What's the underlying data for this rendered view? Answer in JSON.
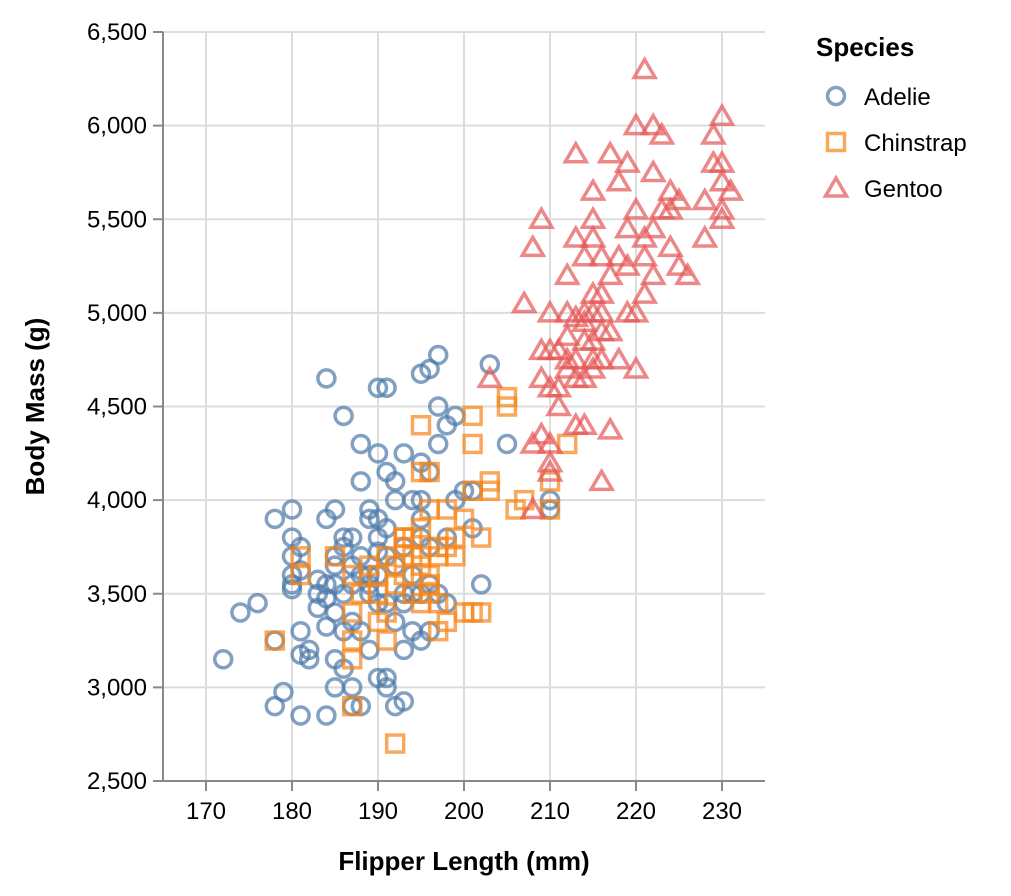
{
  "chart_data": {
    "type": "scatter",
    "xlabel": "Flipper Length (mm)",
    "ylabel": "Body Mass (g)",
    "xlim": [
      165,
      235
    ],
    "ylim": [
      2500,
      6500
    ],
    "x_ticks": [
      "170",
      "180",
      "190",
      "200",
      "210",
      "220",
      "230"
    ],
    "x_tick_values": [
      170,
      180,
      190,
      200,
      210,
      220,
      230
    ],
    "y_ticks": [
      "2,500",
      "3,000",
      "3,500",
      "4,000",
      "4,500",
      "5,000",
      "5,500",
      "6,000",
      "6,500"
    ],
    "y_tick_values": [
      2500,
      3000,
      3500,
      4000,
      4500,
      5000,
      5500,
      6000,
      6500
    ],
    "grid": true,
    "legend": {
      "title": "Species",
      "placement": "right"
    },
    "series": [
      {
        "name": "Adelie",
        "color": "#4c78a8",
        "shape": "circle",
        "points": [
          [
            172,
            3150
          ],
          [
            174,
            3400
          ],
          [
            176,
            3450
          ],
          [
            178,
            3250
          ],
          [
            178,
            3900
          ],
          [
            178,
            2900
          ],
          [
            179,
            2975
          ],
          [
            180,
            3550
          ],
          [
            180,
            3600
          ],
          [
            180,
            3700
          ],
          [
            180,
            3800
          ],
          [
            180,
            3950
          ],
          [
            181,
            3625
          ],
          [
            181,
            3750
          ],
          [
            181,
            3300
          ],
          [
            181,
            3175
          ],
          [
            181,
            2850
          ],
          [
            182,
            3200
          ],
          [
            182,
            3150
          ],
          [
            183,
            3425
          ],
          [
            183,
            3575
          ],
          [
            184,
            3900
          ],
          [
            184,
            3325
          ],
          [
            184,
            3550
          ],
          [
            184,
            3475
          ],
          [
            184,
            2850
          ],
          [
            184,
            4650
          ],
          [
            185,
            3400
          ],
          [
            185,
            3650
          ],
          [
            185,
            3950
          ],
          [
            185,
            3700
          ],
          [
            185,
            3000
          ],
          [
            185,
            3150
          ],
          [
            186,
            3100
          ],
          [
            186,
            3300
          ],
          [
            186,
            3500
          ],
          [
            186,
            3800
          ],
          [
            186,
            4450
          ],
          [
            187,
            3350
          ],
          [
            187,
            3650
          ],
          [
            187,
            3800
          ],
          [
            187,
            2900
          ],
          [
            187,
            3000
          ],
          [
            188,
            3600
          ],
          [
            188,
            3300
          ],
          [
            188,
            4300
          ],
          [
            188,
            2900
          ],
          [
            188,
            4100
          ],
          [
            189,
            3200
          ],
          [
            189,
            3500
          ],
          [
            189,
            3900
          ],
          [
            189,
            3950
          ],
          [
            189,
            3550
          ],
          [
            190,
            3050
          ],
          [
            190,
            3450
          ],
          [
            190,
            3600
          ],
          [
            190,
            3725
          ],
          [
            190,
            3800
          ],
          [
            190,
            3900
          ],
          [
            190,
            4250
          ],
          [
            190,
            4600
          ],
          [
            191,
            3000
          ],
          [
            191,
            3050
          ],
          [
            191,
            3700
          ],
          [
            191,
            4150
          ],
          [
            191,
            4600
          ],
          [
            191,
            3450
          ],
          [
            192,
            2900
          ],
          [
            192,
            3650
          ],
          [
            192,
            4000
          ],
          [
            192,
            4100
          ],
          [
            193,
            3450
          ],
          [
            193,
            3500
          ],
          [
            193,
            2925
          ],
          [
            193,
            4250
          ],
          [
            193,
            3200
          ],
          [
            194,
            3300
          ],
          [
            194,
            3600
          ],
          [
            194,
            4000
          ],
          [
            195,
            3250
          ],
          [
            195,
            3500
          ],
          [
            195,
            4200
          ],
          [
            195,
            4000
          ],
          [
            195,
            4675
          ],
          [
            195,
            3800
          ],
          [
            196,
            3550
          ],
          [
            196,
            4700
          ],
          [
            196,
            4150
          ],
          [
            196,
            3750
          ],
          [
            197,
            3500
          ],
          [
            197,
            4500
          ],
          [
            197,
            4775
          ],
          [
            197,
            4300
          ],
          [
            198,
            3800
          ],
          [
            198,
            4400
          ],
          [
            198,
            3450
          ],
          [
            199,
            4450
          ],
          [
            199,
            4000
          ],
          [
            200,
            4050
          ],
          [
            201,
            3850
          ],
          [
            201,
            4050
          ],
          [
            202,
            3550
          ],
          [
            203,
            4725
          ],
          [
            205,
            4300
          ],
          [
            210,
            3950
          ],
          [
            210,
            4000
          ],
          [
            195,
            3900
          ],
          [
            193,
            3750
          ],
          [
            191,
            3850
          ],
          [
            186,
            3750
          ],
          [
            189,
            3600
          ],
          [
            188,
            3700
          ],
          [
            192,
            3350
          ],
          [
            194,
            3500
          ],
          [
            196,
            3300
          ],
          [
            187,
            3550
          ],
          [
            185,
            3550
          ],
          [
            183,
            3500
          ],
          [
            180,
            3525
          ]
        ]
      },
      {
        "name": "Chinstrap",
        "color": "#f58518",
        "shape": "square",
        "points": [
          [
            178,
            3250
          ],
          [
            181,
            3700
          ],
          [
            181,
            3600
          ],
          [
            185,
            3700
          ],
          [
            187,
            3600
          ],
          [
            187,
            3400
          ],
          [
            187,
            3250
          ],
          [
            187,
            3150
          ],
          [
            187,
            2900
          ],
          [
            188,
            3500
          ],
          [
            189,
            3650
          ],
          [
            190,
            3350
          ],
          [
            190,
            3500
          ],
          [
            190,
            3600
          ],
          [
            191,
            3250
          ],
          [
            191,
            3400
          ],
          [
            191,
            3700
          ],
          [
            192,
            2700
          ],
          [
            192,
            3550
          ],
          [
            193,
            3600
          ],
          [
            193,
            3800
          ],
          [
            193,
            3750
          ],
          [
            194,
            3500
          ],
          [
            194,
            3800
          ],
          [
            195,
            3650
          ],
          [
            195,
            3700
          ],
          [
            195,
            4400
          ],
          [
            195,
            4150
          ],
          [
            195,
            3850
          ],
          [
            196,
            3550
          ],
          [
            196,
            3600
          ],
          [
            196,
            3500
          ],
          [
            196,
            3950
          ],
          [
            196,
            4150
          ],
          [
            197,
            3300
          ],
          [
            197,
            3450
          ],
          [
            197,
            3700
          ],
          [
            198,
            3350
          ],
          [
            198,
            3750
          ],
          [
            198,
            3950
          ],
          [
            199,
            3700
          ],
          [
            199,
            3800
          ],
          [
            200,
            3400
          ],
          [
            200,
            3900
          ],
          [
            201,
            3400
          ],
          [
            201,
            4050
          ],
          [
            201,
            4300
          ],
          [
            201,
            4450
          ],
          [
            202,
            3400
          ],
          [
            202,
            3800
          ],
          [
            203,
            4050
          ],
          [
            203,
            4100
          ],
          [
            205,
            4500
          ],
          [
            205,
            4550
          ],
          [
            206,
            3950
          ],
          [
            207,
            4000
          ],
          [
            210,
            3950
          ],
          [
            210,
            4100
          ],
          [
            212,
            4300
          ],
          [
            192,
            3650
          ],
          [
            194,
            3700
          ],
          [
            197,
            3750
          ],
          [
            195,
            3450
          ],
          [
            193,
            3800
          ]
        ]
      },
      {
        "name": "Gentoo",
        "color": "#e45756",
        "shape": "triangle",
        "points": [
          [
            203,
            4650
          ],
          [
            207,
            5050
          ],
          [
            208,
            3950
          ],
          [
            208,
            4300
          ],
          [
            208,
            5350
          ],
          [
            209,
            4350
          ],
          [
            209,
            4650
          ],
          [
            209,
            5500
          ],
          [
            209,
            4800
          ],
          [
            210,
            4200
          ],
          [
            210,
            4300
          ],
          [
            210,
            4600
          ],
          [
            210,
            4800
          ],
          [
            210,
            5000
          ],
          [
            210,
            4150
          ],
          [
            211,
            4500
          ],
          [
            211,
            4800
          ],
          [
            212,
            4700
          ],
          [
            212,
            4750
          ],
          [
            212,
            5200
          ],
          [
            212,
            4875
          ],
          [
            213,
            4400
          ],
          [
            213,
            4750
          ],
          [
            213,
            4975
          ],
          [
            213,
            5400
          ],
          [
            213,
            5850
          ],
          [
            214,
            4400
          ],
          [
            214,
            4650
          ],
          [
            214,
            4850
          ],
          [
            214,
            5000
          ],
          [
            214,
            5300
          ],
          [
            215,
            4700
          ],
          [
            215,
            4750
          ],
          [
            215,
            5000
          ],
          [
            215,
            5100
          ],
          [
            215,
            5400
          ],
          [
            215,
            5500
          ],
          [
            215,
            5650
          ],
          [
            216,
            4100
          ],
          [
            216,
            4750
          ],
          [
            216,
            5000
          ],
          [
            216,
            5100
          ],
          [
            217,
            4375
          ],
          [
            217,
            4900
          ],
          [
            217,
            5200
          ],
          [
            217,
            5850
          ],
          [
            218,
            4750
          ],
          [
            218,
            5300
          ],
          [
            218,
            5700
          ],
          [
            219,
            5000
          ],
          [
            219,
            5250
          ],
          [
            219,
            5450
          ],
          [
            219,
            5800
          ],
          [
            220,
            4700
          ],
          [
            220,
            5000
          ],
          [
            220,
            5550
          ],
          [
            220,
            6000
          ],
          [
            221,
            5100
          ],
          [
            221,
            5300
          ],
          [
            221,
            5400
          ],
          [
            221,
            6300
          ],
          [
            222,
            5200
          ],
          [
            222,
            5450
          ],
          [
            222,
            5750
          ],
          [
            222,
            6000
          ],
          [
            223,
            5550
          ],
          [
            223,
            5950
          ],
          [
            224,
            5350
          ],
          [
            224,
            5550
          ],
          [
            224,
            5650
          ],
          [
            225,
            5250
          ],
          [
            225,
            5600
          ],
          [
            226,
            5200
          ],
          [
            228,
            5400
          ],
          [
            228,
            5600
          ],
          [
            229,
            5800
          ],
          [
            229,
            5950
          ],
          [
            230,
            5500
          ],
          [
            230,
            5550
          ],
          [
            230,
            5700
          ],
          [
            230,
            5800
          ],
          [
            230,
            6050
          ],
          [
            231,
            5650
          ],
          [
            216,
            4900
          ],
          [
            214,
            4950
          ],
          [
            213,
            4650
          ],
          [
            211,
            4600
          ],
          [
            215,
            4850
          ],
          [
            212,
            5000
          ],
          [
            216,
            5300
          ]
        ]
      }
    ]
  }
}
